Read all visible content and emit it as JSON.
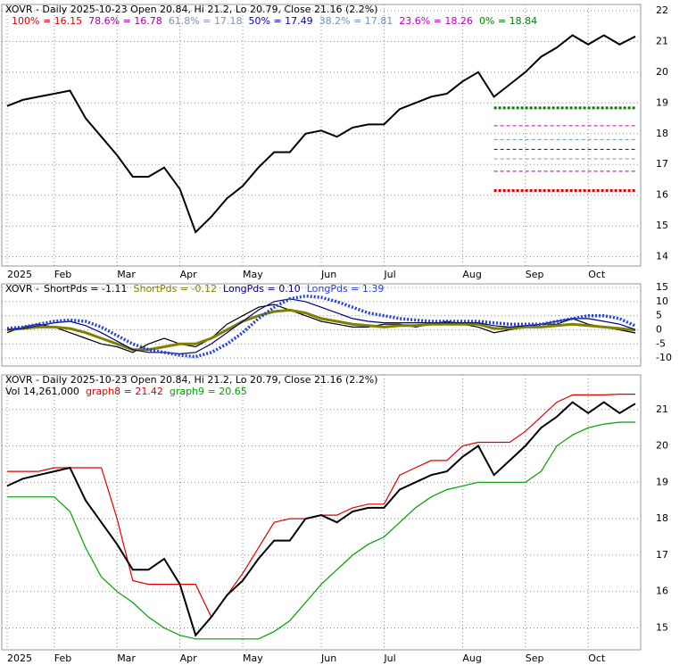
{
  "chart_data": [
    {
      "type": "line",
      "title": "XOVR - Daily 2025-10-23 Open 20.84, Hi 21.2, Lo 20.79, Close 21.16 (2.2%)",
      "categories": [
        "2025",
        null,
        null,
        "Feb",
        null,
        null,
        null,
        "Mar",
        null,
        null,
        null,
        "Apr",
        null,
        null,
        null,
        "May",
        null,
        null,
        null,
        null,
        "Jun",
        null,
        null,
        null,
        "Jul",
        null,
        null,
        null,
        null,
        "Aug",
        null,
        null,
        null,
        "Sep",
        null,
        null,
        null,
        "Oct",
        null,
        null,
        null
      ],
      "values": [
        18.9,
        19.1,
        19.2,
        19.3,
        19.4,
        18.5,
        17.9,
        17.3,
        16.6,
        16.6,
        16.9,
        16.2,
        14.8,
        15.3,
        15.9,
        16.3,
        16.9,
        17.4,
        17.4,
        18.0,
        18.1,
        17.9,
        18.2,
        18.3,
        18.3,
        18.8,
        19.0,
        19.2,
        19.3,
        19.7,
        20.0,
        19.2,
        19.6,
        20.0,
        20.5,
        20.8,
        21.2,
        20.9,
        21.2,
        20.9,
        21.16
      ],
      "color": "#000000",
      "levels": [
        {
          "label": "100% = 16.15",
          "value": 16.15,
          "color": "#e00000"
        },
        {
          "label": "78.6% = 16.78",
          "value": 16.78,
          "color": "#a000a0"
        },
        {
          "label": "61.8% = 17.18",
          "value": 17.18,
          "color": "#8090b0"
        },
        {
          "label": "50% = 17.49",
          "value": 17.49,
          "color": "#0000c0"
        },
        {
          "label": "38.2% = 17.81",
          "value": 17.81,
          "color": "#7090c0"
        },
        {
          "label": "23.6% = 18.26",
          "value": 18.26,
          "color": "#c000c0"
        },
        {
          "label": "0% = 18.84",
          "value": 18.84,
          "color": "#008000"
        }
      ],
      "ylim": [
        13.7,
        22.2
      ],
      "yticks": [
        14,
        15,
        16,
        17,
        18,
        19,
        20,
        21,
        22
      ],
      "grid": true
    },
    {
      "type": "line",
      "title": "XOVR -",
      "categories": [
        null,
        null,
        null,
        null,
        null,
        null,
        null,
        null,
        null,
        null,
        null,
        null,
        null,
        null,
        null,
        null,
        null,
        null,
        null,
        null,
        null,
        null,
        null,
        null,
        null,
        null,
        null,
        null,
        null,
        null,
        null,
        null,
        null,
        null,
        null,
        null,
        null,
        null,
        null,
        null,
        null
      ],
      "series": [
        {
          "name": "ShortPds = -1.11",
          "color": "#000000",
          "values": [
            -1,
            1,
            2,
            1,
            -1,
            -3,
            -5,
            -6,
            -8,
            -5,
            -3,
            -5,
            -6,
            -3,
            2,
            5,
            8,
            9,
            7,
            5,
            3,
            2,
            1,
            1,
            2,
            2,
            1,
            2,
            3,
            2,
            1,
            -1,
            0,
            1,
            2,
            2,
            4,
            2,
            1,
            0,
            -1.11
          ]
        },
        {
          "name": "ShortPds = -0.12",
          "color": "#808000",
          "values": [
            0,
            0.5,
            1,
            1,
            0.5,
            -1,
            -3,
            -5,
            -7,
            -7,
            -6,
            -5,
            -5,
            -3,
            0,
            3,
            5,
            6.5,
            7,
            6,
            4,
            3,
            2,
            1.5,
            1,
            1.5,
            1.5,
            2,
            2,
            2,
            2,
            0.5,
            0.5,
            1,
            1,
            1.5,
            2,
            1.5,
            1,
            0.5,
            -0.12
          ]
        },
        {
          "name": "LongPds = 0.10",
          "color": "#000080",
          "values": [
            0,
            0.5,
            1.5,
            2.5,
            3,
            1.5,
            -1,
            -4,
            -7,
            -8,
            -8,
            -8.5,
            -8,
            -5,
            -1,
            3,
            7,
            10,
            11,
            10,
            8,
            6,
            4,
            3,
            2.5,
            2.5,
            2.5,
            2.5,
            2.5,
            2.5,
            2.5,
            1.5,
            1,
            1.5,
            2,
            3,
            4,
            4,
            3,
            2,
            0.1
          ]
        },
        {
          "name": "LongPds = 1.39",
          "color": "#2040e0",
          "values": [
            0.5,
            1,
            2,
            3,
            3.5,
            3,
            1,
            -2,
            -5,
            -7,
            -8,
            -9,
            -9.5,
            -8,
            -5,
            -1,
            4,
            8,
            11,
            12,
            11.5,
            10,
            8,
            6,
            5,
            4,
            3.5,
            3,
            3,
            3,
            3,
            2.5,
            2,
            2,
            2,
            3,
            4,
            5,
            5,
            4,
            1.39
          ]
        }
      ],
      "ylim": [
        -12.8,
        16.3
      ],
      "yticks": [
        15,
        10,
        5,
        0,
        -5,
        -10
      ],
      "grid": true
    },
    {
      "type": "line",
      "title": "XOVR - Daily 2025-10-23 Open 20.84, Hi 21.2, Lo 20.79, Close 21.16 (2.2%)",
      "subtitle": "Vol 14,261,000",
      "categories": [
        "2025",
        null,
        null,
        "Feb",
        null,
        null,
        null,
        "Mar",
        null,
        null,
        null,
        "Apr",
        null,
        null,
        null,
        "May",
        null,
        null,
        null,
        null,
        "Jun",
        null,
        null,
        null,
        "Jul",
        null,
        null,
        null,
        null,
        "Aug",
        null,
        null,
        null,
        "Sep",
        null,
        null,
        null,
        "Oct",
        null,
        null,
        null
      ],
      "values": [
        18.9,
        19.1,
        19.2,
        19.3,
        19.4,
        18.5,
        17.9,
        17.3,
        16.6,
        16.6,
        16.9,
        16.2,
        14.8,
        15.3,
        15.9,
        16.3,
        16.9,
        17.4,
        17.4,
        18.0,
        18.1,
        17.9,
        18.2,
        18.3,
        18.3,
        18.8,
        19.0,
        19.2,
        19.3,
        19.7,
        20.0,
        19.2,
        19.6,
        20.0,
        20.5,
        20.8,
        21.2,
        20.9,
        21.2,
        20.9,
        21.16
      ],
      "color": "#000000",
      "series": [
        {
          "name": "graph8 = 21.42",
          "color": "#e00000",
          "values": [
            19.3,
            19.3,
            19.3,
            19.4,
            19.4,
            19.4,
            19.4,
            18.0,
            16.3,
            16.2,
            16.2,
            16.2,
            16.2,
            15.3,
            15.9,
            16.5,
            17.2,
            17.9,
            18.0,
            18.0,
            18.1,
            18.1,
            18.3,
            18.4,
            18.4,
            19.2,
            19.4,
            19.6,
            19.6,
            20.0,
            20.1,
            20.1,
            20.1,
            20.4,
            20.8,
            21.2,
            21.4,
            21.4,
            21.4,
            21.42,
            21.42
          ]
        },
        {
          "name": "graph9 = 20.65",
          "color": "#00a000",
          "values": [
            18.6,
            18.6,
            18.6,
            18.6,
            18.2,
            17.2,
            16.4,
            16.0,
            15.7,
            15.3,
            15.0,
            14.8,
            14.7,
            14.7,
            14.7,
            14.7,
            14.7,
            14.9,
            15.2,
            15.7,
            16.2,
            16.6,
            17.0,
            17.3,
            17.5,
            17.9,
            18.3,
            18.6,
            18.8,
            18.9,
            19.0,
            19.0,
            19.0,
            19.0,
            19.3,
            20.0,
            20.3,
            20.5,
            20.6,
            20.65,
            20.65
          ]
        }
      ],
      "ylim": [
        14.4,
        21.95
      ],
      "yticks": [
        15,
        16,
        17,
        18,
        19,
        20,
        21
      ],
      "grid": true
    }
  ]
}
